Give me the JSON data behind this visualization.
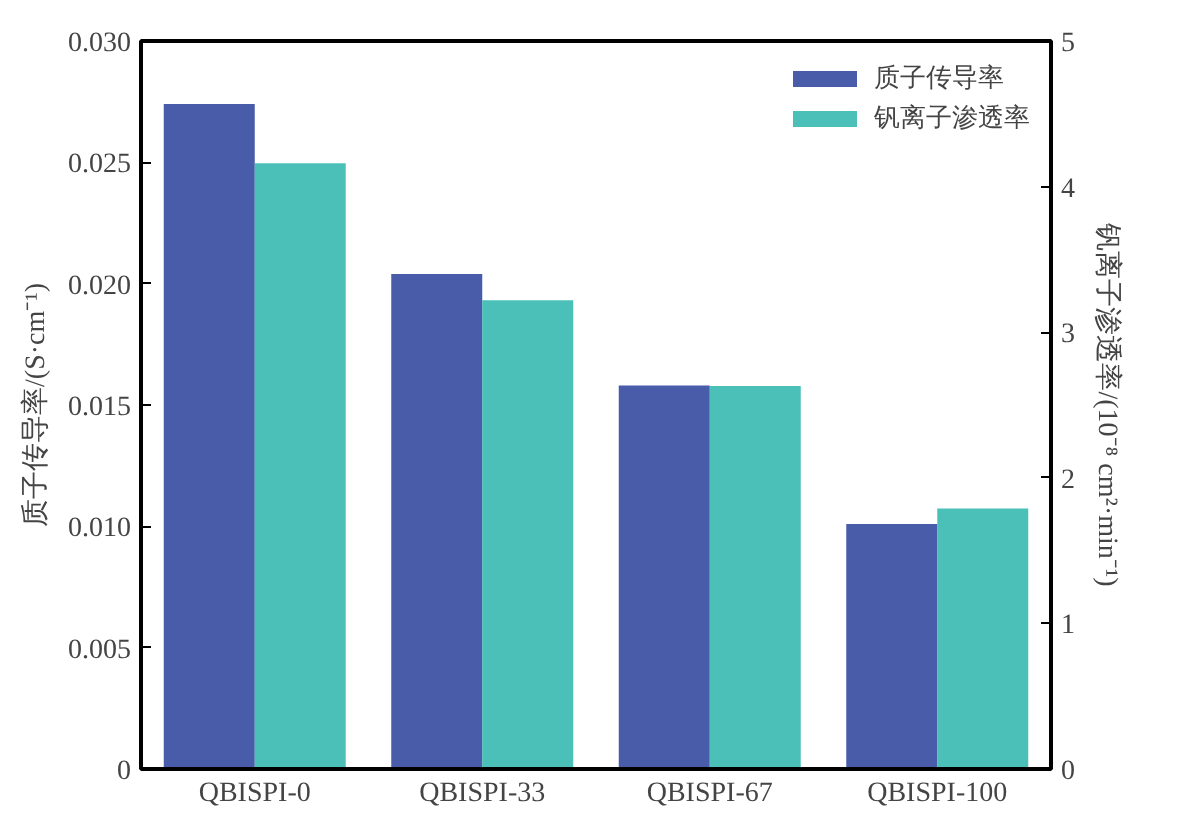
{
  "chart_data": {
    "type": "bar",
    "categories": [
      "QBISPI-0",
      "QBISPI-33",
      "QBISPI-67",
      "QBISPI-100"
    ],
    "ylabel": "质子传导率/(S·cm⁻¹)",
    "y2label": "钒离子渗透率/(10⁻⁸ cm²·min⁻¹)",
    "series": [
      {
        "name": "质子传导率",
        "color": "#283f9a",
        "values": [
          0.0274,
          0.0204,
          0.0158,
          0.0101
        ]
      },
      {
        "name": "钒离子渗透率",
        "color": "#2ab5ad",
        "axis": "y2",
        "values": [
          4.16,
          3.22,
          2.63,
          1.79
        ]
      }
    ],
    "ylim": [
      0,
      0.03
    ],
    "yticks": [
      0,
      0.005,
      {
        "value": 0.01,
        "label": "0.010"
      },
      0.015,
      {
        "value": 0.02,
        "label": "0.020"
      },
      0.025,
      {
        "value": 0.03,
        "label": "0.030"
      }
    ],
    "y2lim": [
      0,
      5
    ],
    "y2ticks": [
      0,
      1,
      2,
      3,
      4,
      5
    ],
    "legend": "top right",
    "grid": false
  }
}
